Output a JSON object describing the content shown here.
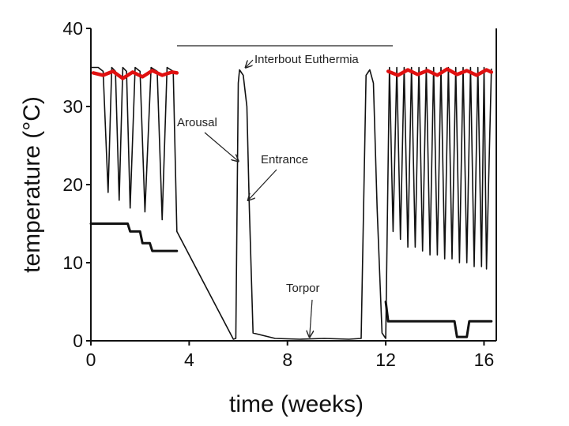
{
  "chart_data": {
    "type": "line",
    "xlabel": "time (weeks)",
    "ylabel": "temperature (°C)",
    "xlim": [
      0,
      16.5
    ],
    "ylim": [
      0,
      40
    ],
    "x_ticks": [
      "0",
      "4",
      "8",
      "12",
      "16"
    ],
    "y_ticks": [
      "0",
      "10",
      "20",
      "30",
      "40"
    ],
    "annotations": [
      {
        "text": "Interbout Euthermia",
        "x": 6.3,
        "y": 35
      },
      {
        "text": "Arousal",
        "x": 6.0,
        "y": 23
      },
      {
        "text": "Entrance",
        "x": 6.4,
        "y": 18
      },
      {
        "text": "Torpor",
        "x": 8.9,
        "y": 0.5
      }
    ],
    "series": [
      {
        "role": "body-temperature",
        "color": "#111111",
        "x": [
          0,
          0.3,
          0.5,
          0.7,
          0.85,
          1.0,
          1.15,
          1.3,
          1.45,
          1.6,
          1.8,
          2.0,
          2.2,
          2.45,
          2.7,
          2.9,
          3.1,
          3.35,
          3.5,
          5.8,
          5.9,
          6.0,
          6.05,
          6.2,
          6.35,
          6.45,
          6.6,
          7.5,
          8.5,
          9.5,
          10.5,
          11.0,
          11.2,
          11.35,
          11.5,
          11.65,
          11.85,
          12.0,
          12.15,
          12.3,
          12.45,
          12.6,
          12.75,
          12.9,
          13.05,
          13.2,
          13.35,
          13.5,
          13.65,
          13.8,
          13.95,
          14.1,
          14.25,
          14.4,
          14.55,
          14.7,
          14.85,
          15.0,
          15.15,
          15.3,
          15.45,
          15.6,
          15.75,
          15.9,
          16.0,
          16.1,
          16.3
        ],
        "y": [
          35,
          35,
          34.5,
          19,
          35,
          34.5,
          18,
          35,
          34.5,
          17,
          35,
          34.5,
          16.5,
          35,
          34.5,
          15.5,
          35,
          34.5,
          14,
          0.2,
          0.3,
          33,
          34.7,
          34,
          30,
          17,
          1,
          0.3,
          0.2,
          0.3,
          0.2,
          0.3,
          34,
          34.7,
          33,
          17,
          1,
          0.3,
          35,
          14,
          35,
          13,
          35,
          12,
          35,
          12,
          35,
          11.5,
          35,
          11,
          35,
          11,
          35,
          10.5,
          35,
          10.5,
          35,
          10,
          35,
          10,
          35,
          9.5,
          35,
          9.5,
          35,
          9.2,
          34.8
        ]
      },
      {
        "role": "euthermic-reference",
        "color": "#e01010",
        "x": [
          0.1,
          0.5,
          0.9,
          1.3,
          1.7,
          2.1,
          2.5,
          2.9,
          3.3,
          3.5,
          12.1,
          12.5,
          12.9,
          13.3,
          13.7,
          14.1,
          14.5,
          14.9,
          15.3,
          15.7,
          16.1,
          16.3
        ],
        "y": [
          34.3,
          34.0,
          34.5,
          33.6,
          34.4,
          33.8,
          34.6,
          34.0,
          34.4,
          34.3,
          34.5,
          34.0,
          34.7,
          34.1,
          34.6,
          34.0,
          34.8,
          34.1,
          34.6,
          34.0,
          34.7,
          34.4
        ]
      },
      {
        "role": "ambient-temperature",
        "color": "#111111",
        "x": [
          0,
          1.5,
          1.6,
          2.0,
          2.1,
          2.4,
          2.5,
          3.5,
          12.0,
          12.1,
          14.8,
          14.9,
          15.3,
          15.4,
          16.3
        ],
        "y": [
          15,
          15,
          14,
          14,
          12.5,
          12.5,
          11.5,
          11.5,
          5,
          2.5,
          2.5,
          0.5,
          0.5,
          2.5,
          2.5
        ]
      }
    ]
  }
}
